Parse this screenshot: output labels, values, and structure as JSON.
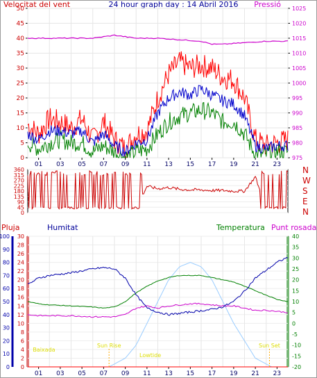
{
  "header": {
    "title": "24 hour graph day : 14 Abril 2016",
    "left_label": "Velocitat del vent",
    "right_label": "Pressió"
  },
  "bottom_header": {
    "rain_label": "Pluja",
    "humidity_label": "Humitat",
    "temperature_label": "Temperatura",
    "dewpoint_label": "Punt rosada"
  },
  "x_ticks": [
    "01",
    "03",
    "05",
    "07",
    "09",
    "11",
    "13",
    "15",
    "17",
    "19",
    "21",
    "23"
  ],
  "bottom_x_ticks": [
    "01",
    "03",
    "05",
    "07",
    "09",
    "11",
    "13",
    "15",
    "17",
    "19",
    "21",
    "23"
  ],
  "compass_labels": [
    "N",
    "W",
    "S",
    "E",
    "N"
  ],
  "colors": {
    "wind": "#ff0000",
    "wind_avg": "#0000cc",
    "wind_min": "#008000",
    "pressure": "#cc00cc",
    "direction": "#cc0000",
    "humidity": "#0000aa",
    "temperature": "#008000",
    "dewpoint": "#cc00cc",
    "rain": "#ff0000",
    "solar": "#99ccff"
  },
  "chart_data": [
    {
      "type": "line",
      "name": "wind_pressure",
      "xlim": [
        0,
        24
      ],
      "left_axis": {
        "min": 0,
        "max": 50,
        "ticks": [
          0,
          5,
          10,
          15,
          20,
          25,
          30,
          35,
          40,
          45,
          50
        ]
      },
      "right_axis": {
        "min": 975,
        "max": 1025,
        "ticks": [
          975,
          980,
          985,
          990,
          995,
          1000,
          1005,
          1010,
          1015,
          1020,
          1025
        ]
      },
      "series": [
        {
          "name": "Pressió",
          "axis": "right",
          "x": [
            0,
            2,
            4,
            6,
            8,
            9,
            10,
            12,
            14,
            16,
            17,
            18,
            20,
            22,
            24
          ],
          "y": [
            1015,
            1015,
            1015,
            1015,
            1016,
            1015.5,
            1015,
            1015,
            1014.5,
            1014,
            1013,
            1013,
            1013.5,
            1014,
            1014
          ]
        },
        {
          "name": "gust",
          "axis": "left",
          "x": [
            0,
            1,
            2,
            3,
            4,
            5,
            6,
            7,
            8,
            9,
            10,
            11,
            12,
            13,
            14,
            15,
            16,
            17,
            18,
            19,
            20,
            21,
            22,
            23,
            24
          ],
          "y": [
            11,
            8,
            13,
            12,
            10,
            13,
            6,
            12,
            6,
            3,
            8,
            9,
            20,
            28,
            32,
            30,
            31,
            30,
            27,
            26,
            20,
            6,
            4,
            5,
            6
          ]
        },
        {
          "name": "average",
          "axis": "left",
          "x": [
            0,
            1,
            2,
            3,
            4,
            5,
            6,
            7,
            8,
            9,
            10,
            11,
            12,
            13,
            14,
            15,
            16,
            17,
            18,
            19,
            20,
            21,
            22,
            23,
            24
          ],
          "y": [
            8,
            6,
            9,
            9,
            8,
            9,
            5,
            8,
            4,
            2,
            5,
            6,
            15,
            20,
            22,
            21,
            23,
            21,
            19,
            18,
            14,
            4,
            3,
            4,
            4
          ]
        },
        {
          "name": "lull",
          "axis": "left",
          "x": [
            0,
            1,
            2,
            3,
            4,
            5,
            6,
            7,
            8,
            9,
            10,
            11,
            12,
            13,
            14,
            15,
            16,
            17,
            18,
            19,
            20,
            21,
            22,
            23,
            24
          ],
          "y": [
            5,
            3,
            5,
            6,
            5,
            5,
            2,
            4,
            2,
            0,
            2,
            3,
            8,
            12,
            14,
            15,
            16,
            15,
            12,
            12,
            8,
            1,
            1,
            2,
            2
          ]
        }
      ]
    },
    {
      "type": "line",
      "name": "wind_direction",
      "xlim": [
        0,
        24
      ],
      "ylim": [
        0,
        360
      ],
      "yticks": [
        0,
        45,
        90,
        135,
        180,
        225,
        270,
        315,
        360
      ],
      "series": [
        {
          "name": "direction",
          "x": [
            0,
            0.5,
            1,
            2,
            3,
            4,
            5,
            6,
            7,
            8,
            9,
            10,
            11,
            12,
            13,
            14,
            15,
            16,
            17,
            18,
            19,
            20,
            21,
            22,
            23,
            24
          ],
          "y": [
            40,
            330,
            340,
            30,
            320,
            40,
            300,
            30,
            320,
            40,
            30,
            40,
            220,
            200,
            210,
            195,
            190,
            190,
            185,
            185,
            180,
            180,
            300,
            20,
            350,
            350
          ]
        }
      ]
    },
    {
      "type": "line",
      "name": "temp_humidity",
      "xlim": [
        0,
        24
      ],
      "humidity_axis": {
        "min": 0,
        "max": 100,
        "ticks": [
          0,
          10,
          20,
          30,
          40,
          50,
          60,
          70,
          80,
          90,
          100
        ]
      },
      "rain_axis": {
        "min": 0,
        "max": 30,
        "ticks": [
          0,
          2,
          4,
          6,
          8,
          10,
          12,
          14,
          16,
          18,
          20,
          22,
          24,
          26,
          28,
          30
        ]
      },
      "temp_axis": {
        "min": -20,
        "max": 40,
        "ticks": [
          -20,
          -15,
          -10,
          -5,
          0,
          5,
          10,
          15,
          20,
          25,
          30,
          35,
          40
        ]
      },
      "annotations": [
        "Baixada",
        "Sun Rise",
        "Lowtide",
        "Sun Set"
      ],
      "series": [
        {
          "name": "Humitat",
          "axis": "humidity",
          "x": [
            0,
            1,
            2,
            4,
            6,
            7,
            8,
            9,
            10,
            11,
            12,
            13,
            14,
            15,
            16,
            17,
            18,
            19,
            20,
            21,
            22,
            23,
            24
          ],
          "y": [
            63,
            68,
            70,
            72,
            75,
            76,
            75,
            68,
            55,
            45,
            42,
            40,
            41,
            42,
            43,
            44,
            46,
            50,
            58,
            68,
            74,
            80,
            84
          ]
        },
        {
          "name": "Temperatura",
          "axis": "temp",
          "x": [
            0,
            1,
            2,
            4,
            6,
            7,
            8,
            9,
            10,
            11,
            12,
            13,
            14,
            15,
            16,
            17,
            18,
            19,
            20,
            21,
            22,
            23,
            24
          ],
          "y": [
            10,
            9,
            8.5,
            8,
            7.5,
            7,
            7.5,
            10,
            14,
            17,
            19.5,
            21,
            22,
            22,
            22,
            21,
            20,
            19,
            17,
            15,
            13,
            11,
            10
          ]
        },
        {
          "name": "Punt rosada",
          "axis": "temp",
          "x": [
            0,
            1,
            2,
            4,
            6,
            7,
            8,
            9,
            10,
            11,
            12,
            13,
            14,
            15,
            16,
            17,
            18,
            19,
            20,
            21,
            22,
            23,
            24
          ],
          "y": [
            4,
            3.5,
            3.5,
            3.5,
            3,
            3,
            3,
            4,
            7,
            8,
            7,
            8,
            8.5,
            9,
            9,
            8.5,
            8,
            8,
            7,
            6,
            6,
            5.5,
            5
          ]
        },
        {
          "name": "Pluja",
          "axis": "rain",
          "x": [
            0,
            24
          ],
          "y": [
            0,
            0
          ]
        },
        {
          "name": "solar",
          "axis": "rain",
          "x": [
            7.5,
            9,
            10,
            11,
            12,
            13,
            14,
            15,
            16,
            17,
            18,
            19,
            20,
            21,
            22.5
          ],
          "y": [
            0,
            2,
            5,
            10,
            15,
            20,
            23,
            24,
            23,
            20,
            15,
            10,
            6,
            2,
            0
          ]
        }
      ]
    }
  ]
}
